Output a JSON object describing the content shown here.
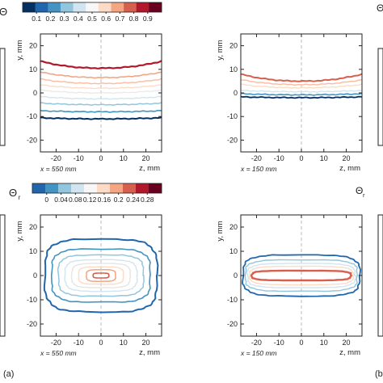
{
  "colors": {
    "frame": "#222222",
    "grid_dash": "#bbbbbb",
    "scale10": [
      "#053061",
      "#2166ac",
      "#4393c3",
      "#92c5de",
      "#d1e5f0",
      "#f7f7f7",
      "#fddbc7",
      "#f4a582",
      "#d6604d",
      "#b2182b",
      "#67001f"
    ]
  },
  "chart_data": [
    {
      "id": "mean-top-left",
      "type": "contour",
      "xlabel": "z, mm",
      "ylabel": "y, mm",
      "xlim": [
        -27,
        27
      ],
      "ylim": [
        -25,
        25
      ],
      "xticks": [
        "-20",
        "-10",
        "0",
        "10",
        "20"
      ],
      "yticks": [
        "20",
        "10",
        "0",
        "-10",
        "-20"
      ],
      "annotation": "x = 550 mm",
      "levels": [
        {
          "y": 10.5,
          "amp": 2.5,
          "color": "#b2182b",
          "width": 2.2
        },
        {
          "y": 6.5,
          "amp": 2.0,
          "color": "#f4a582",
          "width": 1.6
        },
        {
          "y": 4.0,
          "amp": 1.6,
          "color": "#fdbb9e",
          "width": 1.4
        },
        {
          "y": 2.0,
          "amp": 1.2,
          "color": "#fddbc7",
          "width": 1.4
        },
        {
          "y": 0.0,
          "amp": 1.0,
          "color": "#eaeaea",
          "width": 1.4
        },
        {
          "y": -2.5,
          "amp": 0.8,
          "color": "#d1e5f0",
          "width": 1.4
        },
        {
          "y": -5.0,
          "amp": 0.6,
          "color": "#92c5de",
          "width": 1.5
        },
        {
          "y": -8.0,
          "amp": 0.4,
          "color": "#4393c3",
          "width": 1.6
        },
        {
          "y": -11.0,
          "amp": 0.4,
          "color": "#053061",
          "width": 2.0
        }
      ]
    },
    {
      "id": "mean-top-right",
      "type": "contour",
      "xlabel": "z, mm",
      "ylabel": "y, mm",
      "xlim": [
        -27,
        27
      ],
      "ylim": [
        -25,
        25
      ],
      "xticks": [
        "-20",
        "-10",
        "0",
        "10",
        "20"
      ],
      "yticks": [
        "20",
        "10",
        "0",
        "-10",
        "-20"
      ],
      "annotation": "x = 150 mm",
      "levels": [
        {
          "y": 5.0,
          "amp": 2.5,
          "color": "#d6604d",
          "width": 2.0
        },
        {
          "y": 3.5,
          "amp": 1.8,
          "color": "#fdbb9e",
          "width": 1.4
        },
        {
          "y": 2.2,
          "amp": 1.2,
          "color": "#fddbc7",
          "width": 1.4
        },
        {
          "y": 0.5,
          "amp": 0.5,
          "color": "#d1e5f0",
          "width": 1.4
        },
        {
          "y": -0.8,
          "amp": 0.4,
          "color": "#4393c3",
          "width": 1.6
        },
        {
          "y": -2.0,
          "amp": 0.3,
          "color": "#053061",
          "width": 1.8
        }
      ]
    },
    {
      "id": "rms-bottom-left",
      "type": "contour",
      "xlabel": "z, mm",
      "ylabel": "y, mm",
      "xlim": [
        -27,
        27
      ],
      "ylim": [
        -25,
        25
      ],
      "xticks": [
        "-20",
        "-10",
        "0",
        "10",
        "20"
      ],
      "yticks": [
        "20",
        "10",
        "0",
        "-10",
        "-20"
      ],
      "annotation": "x = 550 mm",
      "rings": [
        {
          "w": 25,
          "h": 15,
          "color": "#2166ac",
          "width": 2.0
        },
        {
          "w": 22,
          "h": 11,
          "color": "#4393c3",
          "width": 1.6
        },
        {
          "w": 19,
          "h": 8.5,
          "color": "#92c5de",
          "width": 1.5
        },
        {
          "w": 16,
          "h": 6.5,
          "color": "#d1e5f0",
          "width": 1.4
        },
        {
          "w": 13,
          "h": 5.0,
          "color": "#e5e5e5",
          "width": 1.4
        },
        {
          "w": 10,
          "h": 3.6,
          "color": "#fddbc7",
          "width": 1.4
        },
        {
          "w": 6.5,
          "h": 2.4,
          "color": "#f4a582",
          "width": 1.5
        },
        {
          "w": 3.5,
          "h": 1.0,
          "color": "#d6604d",
          "width": 1.6
        }
      ]
    },
    {
      "id": "rms-bottom-right",
      "type": "contour",
      "xlabel": "z, mm",
      "ylabel": "y, mm",
      "xlim": [
        -27,
        27
      ],
      "ylim": [
        -25,
        25
      ],
      "xticks": [
        "-20",
        "-10",
        "0",
        "10",
        "20"
      ],
      "yticks": [
        "20",
        "10",
        "0",
        "-10",
        "-20"
      ],
      "annotation": "x = 150 mm",
      "rings": [
        {
          "w": 26,
          "h": 8.5,
          "color": "#2166ac",
          "width": 1.8
        },
        {
          "w": 25,
          "h": 6.5,
          "color": "#92c5de",
          "width": 1.4
        },
        {
          "w": 24,
          "h": 5.0,
          "color": "#d1e5f0",
          "width": 1.4
        },
        {
          "w": 23,
          "h": 3.8,
          "color": "#fddbc7",
          "width": 1.4
        },
        {
          "w": 22,
          "h": 2.0,
          "color": "#d6604d",
          "width": 2.4
        }
      ]
    }
  ],
  "colorbars": [
    {
      "id": "mean",
      "symbol": "Θ",
      "ticks": [
        "0.1",
        "0.2",
        "0.3",
        "0.4",
        "0.5",
        "0.6",
        "0.7",
        "0.8",
        "0.9"
      ]
    },
    {
      "id": "rms",
      "symbol": "Θ",
      "subscript": "r",
      "ticks": [
        "0",
        "0.04",
        "0.08",
        "0.12",
        "0.16",
        "0.2",
        "0.24",
        "0.28"
      ]
    }
  ],
  "panel_labels": [
    "(a)",
    "(b)"
  ],
  "edge_labels": {
    "bottom_right_partial": "Θ",
    "bottom_right_sub": "r"
  }
}
